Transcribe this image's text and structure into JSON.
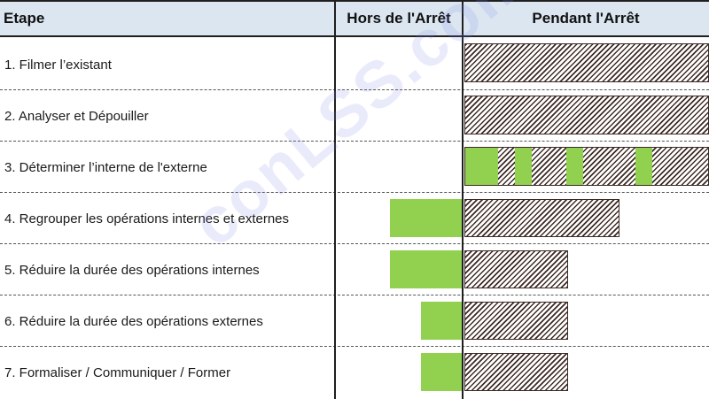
{
  "headers": {
    "step": "Etape",
    "off": "Hors de l'Arrêt",
    "on": "Pendant l'Arrêt"
  },
  "steps": [
    "1. Filmer l’existant",
    "2. Analyser et Dépouiller",
    "3. Déterminer l’interne de l'externe",
    "4. Regrouper les opérations internes et externes",
    "5. Réduire la durée des opérations internes",
    "6. Réduire la durée des opérations externes",
    "7. Formaliser / Communiquer / Former"
  ],
  "watermark": "conLSS.com",
  "colors": {
    "header_bg": "#dce6f1",
    "external_bar": "#92d050",
    "internal_hatch": "#3d2a24"
  }
}
